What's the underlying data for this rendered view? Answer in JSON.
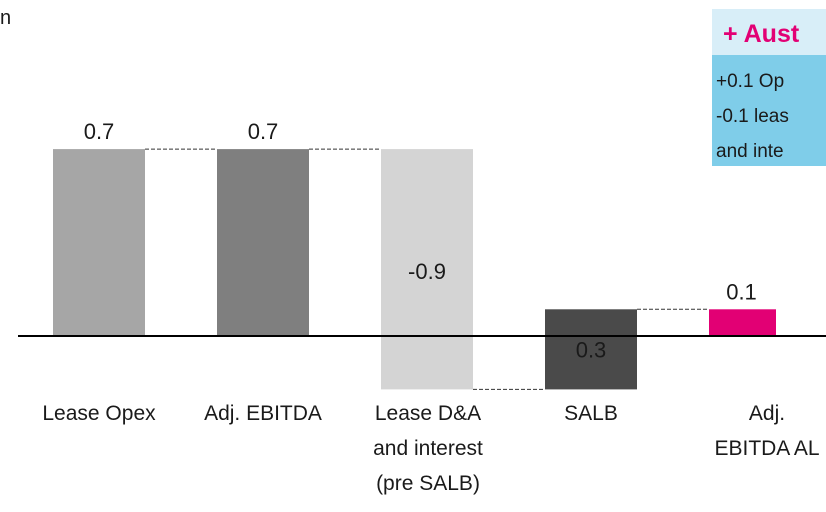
{
  "unit_label": "n",
  "chart_data": {
    "type": "bar",
    "subtype": "waterfall",
    "categories": [
      [
        "Lease Opex"
      ],
      [
        "Adj. EBITDA"
      ],
      [
        "Lease D&A",
        "and interest",
        "(pre SALB)"
      ],
      [
        "SALB"
      ],
      [
        "Adj.",
        "EBITDA AL"
      ]
    ],
    "values": [
      0.7,
      0.7,
      -0.9,
      0.3,
      0.1
    ],
    "value_labels": [
      "0.7",
      "0.7",
      "-0.9",
      "0.3",
      "0.1"
    ],
    "bars": [
      {
        "base": 0,
        "top": 0.7
      },
      {
        "base": 0,
        "top": 0.7
      },
      {
        "base": 0.7,
        "top": -0.2
      },
      {
        "base": -0.2,
        "top": 0.1
      },
      {
        "base": 0,
        "top": 0.1
      }
    ],
    "colors": [
      "#a6a6a6",
      "#7f7f7f",
      "#d4d4d4",
      "#4a4a4a",
      "#e20074"
    ],
    "connectors": true,
    "ylim": [
      -0.25,
      0.75
    ],
    "title": "",
    "xlabel": "",
    "ylabel": ""
  },
  "callout": {
    "title": "+ Aust",
    "lines": [
      "+0.1 Op",
      "-0.1 leas",
      "and inte"
    ],
    "background": "#7fcde9",
    "title_color": "#e20074"
  }
}
